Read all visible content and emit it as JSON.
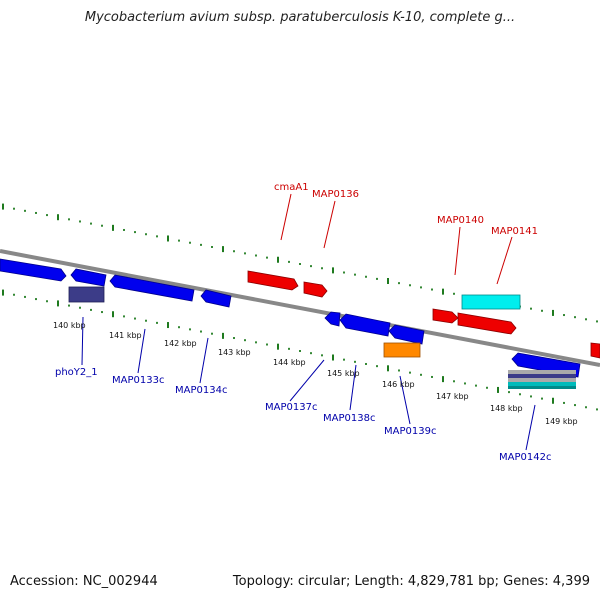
{
  "title": "Mycobacterium avium subsp. paratuberculosis K-10, complete g...",
  "footer": {
    "accession": "Accession: NC_002944",
    "summary": "Topology: circular; Length: 4,829,781 bp; Genes: 4,399"
  },
  "colors": {
    "backbone": "#888888",
    "tick": "#1e7a1e",
    "top_label": "#cc0000",
    "bottom_label": "#0000aa",
    "forward_gene": "#ee0000",
    "reverse_gene": "#0000ee",
    "cyan_gene": "#00eeee",
    "orange_gene": "#ff8800",
    "purple_gene": "#3c3c88"
  },
  "kbp_labels": [
    "140 kbp",
    "141 kbp",
    "142 kbp",
    "143 kbp",
    "144 kbp",
    "145 kbp",
    "146 kbp",
    "147 kbp",
    "148 kbp",
    "149 kbp"
  ],
  "top_labels": [
    "cmaA1",
    "MAP0136",
    "MAP0140",
    "MAP0141"
  ],
  "bottom_labels": [
    "phoY2_1",
    "MAP0133c",
    "MAP0134c",
    "MAP0137c",
    "MAP0138c",
    "MAP0139c",
    "MAP0142c"
  ]
}
